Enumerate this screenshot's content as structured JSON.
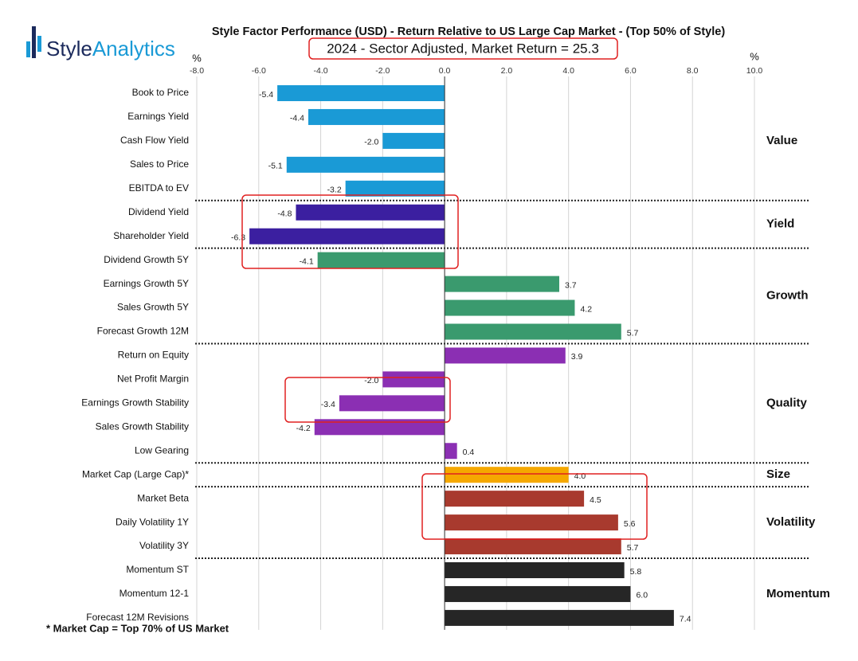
{
  "chart_data": {
    "type": "bar",
    "orientation": "horizontal",
    "logo": [
      "Style",
      "Analytics"
    ],
    "title": "Style Factor Performance (USD) - Return Relative to US Large Cap Market - (Top 50% of Style)",
    "subtitle": "2024 - Sector Adjusted, Market Return = 25.3",
    "axis_unit_left": "%",
    "axis_unit_right": "%",
    "footnote": "* Market Cap = Top 70% of US Market",
    "xlim": [
      -8,
      10
    ],
    "xticks": [
      {
        "value": -8,
        "label": "-8.0"
      },
      {
        "value": -6,
        "label": "-6.0"
      },
      {
        "value": -4,
        "label": "-4.0"
      },
      {
        "value": -2,
        "label": "-2.0"
      },
      {
        "value": 0,
        "label": "0.0"
      },
      {
        "value": 2,
        "label": "2.0"
      },
      {
        "value": 4,
        "label": "4.0"
      },
      {
        "value": 6,
        "label": "6.0"
      },
      {
        "value": 8,
        "label": "8.0"
      },
      {
        "value": 10,
        "label": "10.0"
      }
    ],
    "grid": true,
    "series": [
      {
        "name": "Value",
        "color": "#1a9ad6",
        "categories": [
          "Book to Price",
          "Earnings Yield",
          "Cash Flow Yield",
          "Sales to Price",
          "EBITDA to EV"
        ],
        "values": [
          -5.4,
          -4.4,
          -2.0,
          -5.1,
          -3.2
        ],
        "value_labels": [
          "-5.4",
          "-4.4",
          "-2.0",
          "-5.1",
          "-3.2"
        ]
      },
      {
        "name": "Yield",
        "color": "#3b1fa0",
        "categories": [
          "Dividend Yield",
          "Shareholder Yield"
        ],
        "values": [
          -4.8,
          -6.3
        ],
        "value_labels": [
          "-4.8",
          "-6.3"
        ]
      },
      {
        "name": "Growth",
        "color": "#3a9a6e",
        "categories": [
          "Dividend Growth 5Y",
          "Earnings Growth 5Y",
          "Sales Growth 5Y",
          "Forecast Growth 12M"
        ],
        "values": [
          -4.1,
          3.7,
          4.2,
          5.7
        ],
        "value_labels": [
          "-4.1",
          "3.7",
          "4.2",
          "5.7"
        ]
      },
      {
        "name": "Quality",
        "color": "#8b2fb3",
        "categories": [
          "Return on Equity",
          "Net Profit Margin",
          "Earnings Growth Stability",
          "Sales Growth Stability",
          "Low Gearing"
        ],
        "values": [
          3.9,
          -2.0,
          -3.4,
          -4.2,
          0.4
        ],
        "value_labels": [
          "3.9",
          "-2.0",
          "-3.4",
          "-4.2",
          "0.4"
        ]
      },
      {
        "name": "Size",
        "color": "#f5a800",
        "categories": [
          "Market Cap (Large Cap)*"
        ],
        "values": [
          4.0
        ],
        "value_labels": [
          "4.0"
        ]
      },
      {
        "name": "Volatility",
        "color": "#a83a2e",
        "categories": [
          "Market Beta",
          "Daily Volatility 1Y",
          "Volatility 3Y"
        ],
        "values": [
          4.5,
          5.6,
          5.7
        ],
        "value_labels": [
          "4.5",
          "5.6",
          "5.7"
        ]
      },
      {
        "name": "Momentum",
        "color": "#262626",
        "categories": [
          "Momentum ST",
          "Momentum 12-1",
          "Forecast 12M Revisions"
        ],
        "values": [
          5.8,
          6.0,
          7.4
        ],
        "value_labels": [
          "5.8",
          "6.0",
          "7.4"
        ]
      }
    ]
  }
}
